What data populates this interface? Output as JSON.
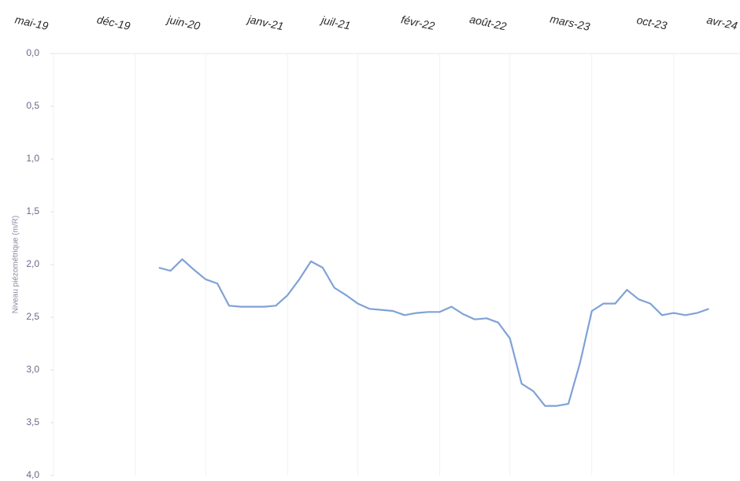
{
  "chart_data": {
    "type": "line",
    "y_label": "Niveau piézométrique (m/R)",
    "x": [
      "2020-02",
      "2020-03",
      "2020-04",
      "2020-05",
      "2020-06",
      "2020-07",
      "2020-08",
      "2020-09",
      "2020-10",
      "2020-11",
      "2020-12",
      "2021-01",
      "2021-02",
      "2021-03",
      "2021-04",
      "2021-05",
      "2021-06",
      "2021-07",
      "2021-08",
      "2021-09",
      "2021-10",
      "2021-11",
      "2021-12",
      "2022-01",
      "2022-02",
      "2022-03",
      "2022-04",
      "2022-05",
      "2022-06",
      "2022-07",
      "2022-08",
      "2022-09",
      "2022-10",
      "2022-11",
      "2022-12",
      "2023-01",
      "2023-02",
      "2023-03",
      "2023-04",
      "2023-05",
      "2023-06",
      "2023-07",
      "2023-08",
      "2023-09",
      "2023-10",
      "2023-11",
      "2023-12",
      "2024-01"
    ],
    "series": [
      {
        "name": "Niveau",
        "color": "#7fa2d6",
        "values": [
          2.03,
          2.06,
          1.95,
          2.05,
          2.14,
          2.18,
          2.39,
          2.4,
          2.4,
          2.4,
          2.39,
          2.29,
          2.14,
          1.97,
          2.03,
          2.22,
          2.29,
          2.37,
          2.42,
          2.43,
          2.44,
          2.48,
          2.46,
          2.45,
          2.45,
          2.4,
          2.47,
          2.52,
          2.51,
          2.55,
          2.7,
          3.13,
          3.2,
          3.34,
          3.34,
          3.32,
          2.93,
          2.44,
          2.37,
          2.37,
          2.24,
          2.33,
          2.37,
          2.48,
          2.46,
          2.48,
          2.46,
          2.42
        ]
      }
    ],
    "xlim": [
      "2019-05",
      "2024-04"
    ],
    "xticks": [
      {
        "value": "2019-05",
        "label": "mai-19"
      },
      {
        "value": "2019-12",
        "label": "déc-19"
      },
      {
        "value": "2020-06",
        "label": "juin-20"
      },
      {
        "value": "2021-01",
        "label": "janv-21"
      },
      {
        "value": "2021-07",
        "label": "juil-21"
      },
      {
        "value": "2022-02",
        "label": "févr-22"
      },
      {
        "value": "2022-08",
        "label": "août-22"
      },
      {
        "value": "2023-03",
        "label": "mars-23"
      },
      {
        "value": "2023-10",
        "label": "oct-23"
      },
      {
        "value": "2024-04",
        "label": "avr-24"
      }
    ],
    "ylim": [
      0,
      4
    ],
    "y_inverted": true,
    "yticks": [
      {
        "value": 0,
        "label": "0,0"
      },
      {
        "value": 0.5,
        "label": "0,5"
      },
      {
        "value": 1,
        "label": "1,0"
      },
      {
        "value": 1.5,
        "label": "1,5"
      },
      {
        "value": 2,
        "label": "2,0"
      },
      {
        "value": 2.5,
        "label": "2,5"
      },
      {
        "value": 3,
        "label": "3,0"
      },
      {
        "value": 3.5,
        "label": "3,5"
      },
      {
        "value": 4,
        "label": "4,0"
      }
    ],
    "grid": true
  }
}
